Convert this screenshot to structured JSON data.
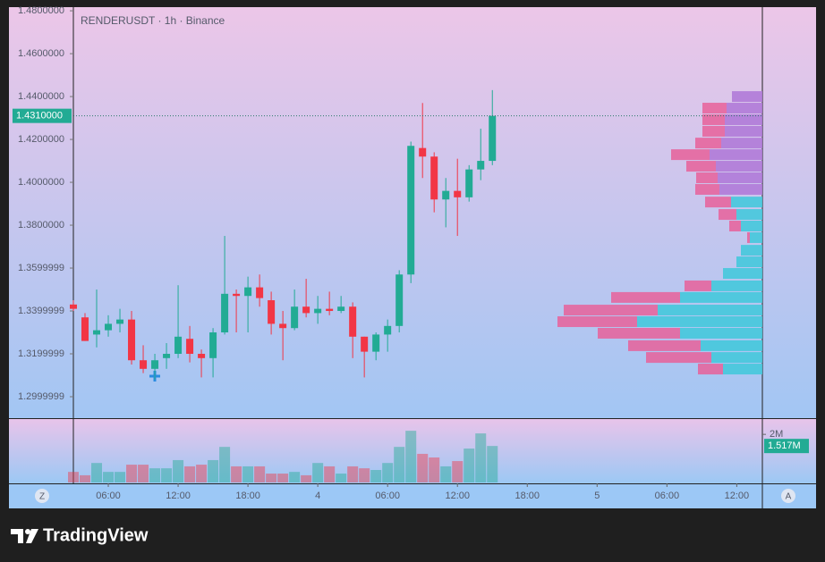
{
  "chart_data": [
    {
      "type": "candlestick",
      "title": "RENDERUSDT · 1h · Binance",
      "x": [
        0,
        1,
        2,
        3,
        4,
        5,
        6,
        7,
        8,
        9,
        10,
        11,
        12,
        13,
        14,
        15,
        16,
        17,
        18,
        19,
        20,
        21,
        22,
        23,
        24,
        25,
        26,
        27,
        28,
        29,
        30,
        31,
        32,
        33,
        34,
        35,
        36
      ],
      "open": [
        1.343,
        1.337,
        1.329,
        1.331,
        1.334,
        1.336,
        1.317,
        1.313,
        1.318,
        1.32,
        1.327,
        1.32,
        1.318,
        1.33,
        1.348,
        1.347,
        1.351,
        1.345,
        1.334,
        1.332,
        1.342,
        1.339,
        1.341,
        1.34,
        1.342,
        1.328,
        1.321,
        1.329,
        1.333,
        1.357,
        1.416,
        1.412,
        1.392,
        1.396,
        1.393,
        1.406,
        1.41
      ],
      "high": [
        1.345,
        1.339,
        1.35,
        1.338,
        1.341,
        1.34,
        1.324,
        1.32,
        1.325,
        1.352,
        1.333,
        1.322,
        1.332,
        1.375,
        1.35,
        1.356,
        1.357,
        1.349,
        1.34,
        1.35,
        1.355,
        1.347,
        1.349,
        1.347,
        1.344,
        1.328,
        1.33,
        1.336,
        1.359,
        1.419,
        1.437,
        1.414,
        1.402,
        1.411,
        1.408,
        1.425,
        1.443
      ],
      "low": [
        1.34,
        1.326,
        1.323,
        1.328,
        1.33,
        1.315,
        1.311,
        1.308,
        1.313,
        1.318,
        1.316,
        1.309,
        1.309,
        1.329,
        1.33,
        1.33,
        1.342,
        1.329,
        1.317,
        1.331,
        1.337,
        1.334,
        1.338,
        1.339,
        1.318,
        1.309,
        1.317,
        1.321,
        1.33,
        1.353,
        1.402,
        1.386,
        1.379,
        1.375,
        1.391,
        1.401,
        1.408
      ],
      "close": [
        1.341,
        1.326,
        1.331,
        1.334,
        1.336,
        1.317,
        1.313,
        1.317,
        1.32,
        1.328,
        1.32,
        1.318,
        1.33,
        1.348,
        1.347,
        1.351,
        1.346,
        1.334,
        1.332,
        1.342,
        1.339,
        1.341,
        1.34,
        1.342,
        1.328,
        1.321,
        1.329,
        1.333,
        1.357,
        1.417,
        1.412,
        1.392,
        1.396,
        1.393,
        1.406,
        1.41,
        1.431
      ],
      "up_color": "#22ab94",
      "down_color": "#f23645",
      "xlim": [
        0,
        59.2
      ],
      "xticks": [
        {
          "value": 3,
          "label": "06:00"
        },
        {
          "value": 9,
          "label": "12:00"
        },
        {
          "value": 15,
          "label": "18:00"
        },
        {
          "value": 21,
          "label": "4"
        },
        {
          "value": 27,
          "label": "06:00"
        },
        {
          "value": 33,
          "label": "12:00"
        },
        {
          "value": 39,
          "label": "18:00"
        },
        {
          "value": 45,
          "label": "5"
        },
        {
          "value": 51,
          "label": "06:00"
        },
        {
          "value": 57,
          "label": "12:00"
        }
      ],
      "ylim": [
        1.29,
        1.4817
      ],
      "yticks": [
        {
          "value": 1.48,
          "label": "1.4800000"
        },
        {
          "value": 1.46,
          "label": "1.4600000"
        },
        {
          "value": 1.44,
          "label": "1.4400000"
        },
        {
          "value": 1.42,
          "label": "1.4200000"
        },
        {
          "value": 1.4,
          "label": "1.4000000"
        },
        {
          "value": 1.38,
          "label": "1.3800000"
        },
        {
          "value": 1.36,
          "label": "1.3599999"
        },
        {
          "value": 1.34,
          "label": "1.3399999"
        },
        {
          "value": 1.32,
          "label": "1.3199999"
        },
        {
          "value": 1.3,
          "label": "1.2999999"
        }
      ],
      "last_price": {
        "value": 1.431,
        "label": "1.4310000"
      },
      "volume_profile": {
        "sell_color": "#e8609a",
        "rows": [
          {
            "price": 1.44,
            "buy": 34,
            "sell": 0,
            "color": "#b07ad8"
          },
          {
            "price": 1.4346,
            "buy": 40,
            "sell": 27,
            "color": "#b07ad8"
          },
          {
            "price": 1.4292,
            "buy": 42,
            "sell": 25,
            "color": "#b07ad8"
          },
          {
            "price": 1.4238,
            "buy": 42,
            "sell": 25,
            "color": "#b07ad8"
          },
          {
            "price": 1.4183,
            "buy": 46,
            "sell": 29,
            "color": "#b07ad8"
          },
          {
            "price": 1.4129,
            "buy": 59,
            "sell": 43,
            "color": "#b07ad8"
          },
          {
            "price": 1.4075,
            "buy": 52,
            "sell": 33,
            "color": "#b07ad8"
          },
          {
            "price": 1.4021,
            "buy": 50,
            "sell": 24,
            "color": "#b07ad8"
          },
          {
            "price": 1.3967,
            "buy": 48,
            "sell": 27,
            "color": "#b07ad8"
          },
          {
            "price": 1.3908,
            "buy": 35,
            "sell": 29,
            "color": "#45c8dc"
          },
          {
            "price": 1.385,
            "buy": 29,
            "sell": 20,
            "color": "#45c8dc"
          },
          {
            "price": 1.3796,
            "buy": 24,
            "sell": 13,
            "color": "#45c8dc"
          },
          {
            "price": 1.3742,
            "buy": 14,
            "sell": 3,
            "color": "#45c8dc"
          },
          {
            "price": 1.3683,
            "buy": 24,
            "sell": 0,
            "color": "#45c8dc"
          },
          {
            "price": 1.3629,
            "buy": 29,
            "sell": 0,
            "color": "#45c8dc"
          },
          {
            "price": 1.3575,
            "buy": 44,
            "sell": 0,
            "color": "#45c8dc"
          },
          {
            "price": 1.3517,
            "buy": 57,
            "sell": 30,
            "color": "#45c8dc"
          },
          {
            "price": 1.3463,
            "buy": 92,
            "sell": 77,
            "color": "#45c8dc"
          },
          {
            "price": 1.3404,
            "buy": 117,
            "sell": 105,
            "color": "#45c8dc"
          },
          {
            "price": 1.335,
            "buy": 140,
            "sell": 89,
            "color": "#45c8dc"
          },
          {
            "price": 1.3296,
            "buy": 92,
            "sell": 92,
            "color": "#45c8dc"
          },
          {
            "price": 1.3238,
            "buy": 69,
            "sell": 81,
            "color": "#45c8dc"
          },
          {
            "price": 1.3183,
            "buy": 57,
            "sell": 73,
            "color": "#45c8dc"
          },
          {
            "price": 1.3129,
            "buy": 44,
            "sell": 28,
            "color": "#45c8dc"
          }
        ]
      }
    },
    {
      "type": "bar",
      "values": [
        0.44,
        0.3,
        0.81,
        0.44,
        0.44,
        0.74,
        0.74,
        0.59,
        0.59,
        0.93,
        0.67,
        0.74,
        0.93,
        1.48,
        0.67,
        0.67,
        0.67,
        0.37,
        0.37,
        0.44,
        0.3,
        0.81,
        0.67,
        0.37,
        0.67,
        0.59,
        0.52,
        0.81,
        1.48,
        2.15,
        1.19,
        1.04,
        0.67,
        0.89,
        1.41,
        2.04,
        1.517
      ],
      "ylim": [
        0,
        2.6
      ],
      "yticks": [
        {
          "value": 2,
          "label": "2M"
        }
      ],
      "last_value_label": "1.517M",
      "up_color": "#22ab94",
      "down_color": "#f23645"
    }
  ],
  "buttons": {
    "left": "Z",
    "right": "A"
  },
  "brand": "TradingView"
}
